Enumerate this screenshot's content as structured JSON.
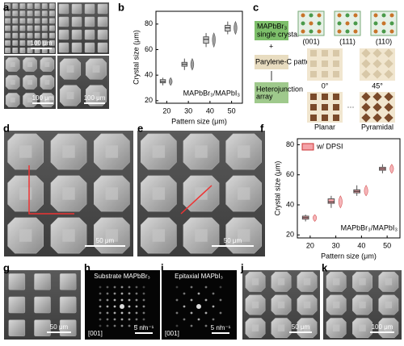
{
  "panel_labels": [
    "a",
    "b",
    "c",
    "d",
    "e",
    "f",
    "g",
    "h",
    "i",
    "j",
    "k"
  ],
  "panel_a": {
    "scale_bars": [
      "100 μm",
      "100 μm",
      "100 μm"
    ]
  },
  "panel_c": {
    "crystal": [
      "MAPbBr₃",
      "single crystal"
    ],
    "plus": "+",
    "mask": "Parylene-C pattern",
    "array": [
      "Heterojunction",
      "array"
    ],
    "facets": [
      "(001)",
      "(111)",
      "(110)"
    ],
    "angles": [
      "0°",
      "45°"
    ],
    "shapes": [
      "Planar",
      "Pyramidal"
    ],
    "ellipsis": "···"
  },
  "panel_d": {
    "scale_bar": "50 μm"
  },
  "panel_e": {
    "scale_bar": "50 μm"
  },
  "panel_g": {
    "scale_bar": "50 μm"
  },
  "panel_h": {
    "title": "Substrate MAPbBr₃",
    "zone": "[001]",
    "scale_bar": "5 nm⁻¹"
  },
  "panel_i": {
    "title": "Epitaxial MAPbI₃",
    "zone": "[001]",
    "scale_bar": "5 nm⁻¹"
  },
  "panel_j": {
    "scale_bar": "50 μm"
  },
  "panel_k": {
    "scale_bar": "100 μm"
  },
  "chart_data": [
    {
      "type": "box",
      "y_label": "Crystal size (μm)",
      "x_label": "Pattern size (μm)",
      "annotation": "MAPbBr₃/MAPbI₃",
      "x": [
        20,
        30,
        40,
        50
      ],
      "xlim": [
        15,
        55
      ],
      "xticks": [
        20,
        30,
        40,
        50
      ],
      "ylim": [
        18,
        90
      ],
      "yticks": [
        20,
        40,
        60,
        80
      ],
      "series": [
        {
          "color": "#d0d0d0",
          "whisker_low": [
            32,
            44,
            62,
            72
          ],
          "q1": [
            34,
            47,
            65,
            74.5
          ],
          "median": [
            35,
            48.5,
            68,
            77
          ],
          "q3": [
            36.5,
            50,
            70,
            79
          ],
          "whisker_high": [
            38,
            53,
            73,
            82
          ]
        }
      ]
    },
    {
      "type": "box",
      "y_label": "Crystal size (μm)",
      "x_label": "Pattern size (μm)",
      "annotation": "MAPbBr₃/MAPbI₃",
      "x": [
        20,
        30,
        40,
        50
      ],
      "xlim": [
        15,
        55
      ],
      "xticks": [
        20,
        30,
        40,
        50
      ],
      "ylim": [
        18,
        84
      ],
      "yticks": [
        20,
        40,
        60,
        80
      ],
      "legend": "upper left",
      "series": [
        {
          "name": "w/ DPSI",
          "color": "#f4a3a8",
          "whisker_low": [
            29,
            38,
            46,
            61
          ],
          "q1": [
            30.5,
            41,
            48,
            63
          ],
          "median": [
            31.5,
            42,
            49,
            64
          ],
          "q3": [
            32.5,
            44,
            50,
            65
          ],
          "whisker_high": [
            33.5,
            46,
            53,
            67
          ]
        }
      ]
    }
  ]
}
